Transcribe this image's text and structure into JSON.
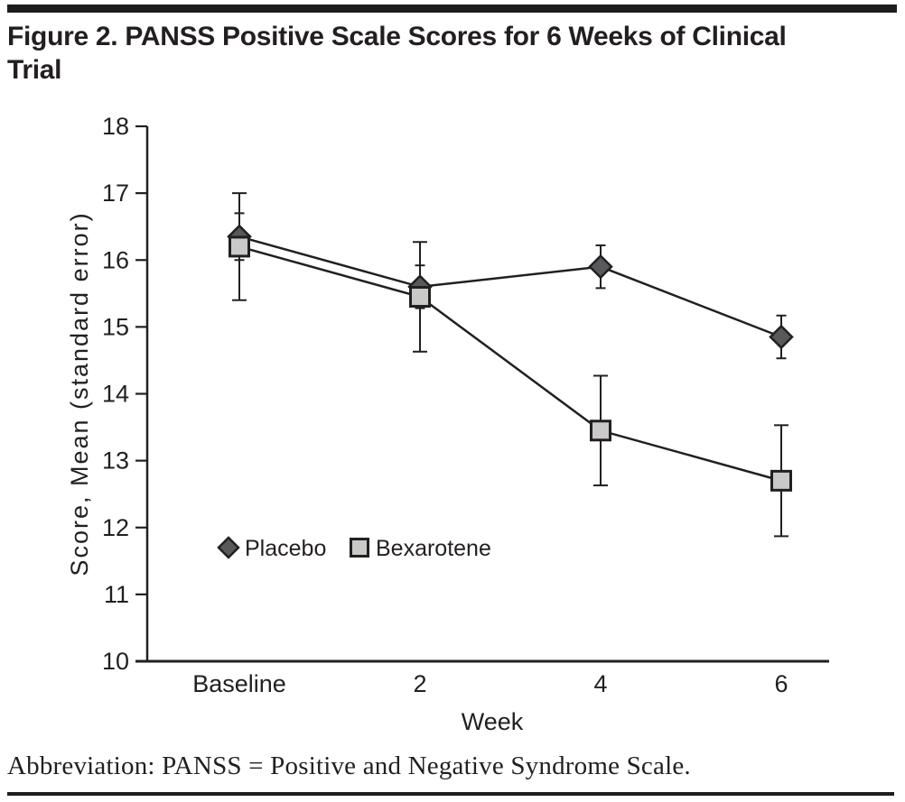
{
  "page": {
    "title_line1": "Figure 2. PANSS Positive Scale Scores for 6 Weeks of Clinical",
    "title_line2": "Trial",
    "footnote": "Abbreviation: PANSS = Positive and Negative Syndrome Scale.",
    "text_color": "#231f20",
    "rule_color": "#1e1c1d"
  },
  "chart_data": {
    "type": "line",
    "title": "Figure 2. PANSS Positive Scale Scores for 6 Weeks of Clinical Trial",
    "categories": [
      "Baseline",
      "2",
      "4",
      "6"
    ],
    "xlabel": "Week",
    "ylabel": "Score, Mean (standard error)",
    "ylim": [
      10,
      18
    ],
    "yticks": [
      10,
      11,
      12,
      13,
      14,
      15,
      16,
      17,
      18
    ],
    "grid": false,
    "error_bars": true,
    "legend_position": "inside-lower-left",
    "line_color": "#231f20",
    "series": [
      {
        "name": "Placebo",
        "marker": "diamond",
        "fill": "#58595b",
        "values": [
          16.35,
          15.6,
          15.9,
          14.85
        ],
        "se": [
          0.35,
          0.32,
          0.32,
          0.32
        ]
      },
      {
        "name": "Bexarotene",
        "marker": "square",
        "fill": "#c9c9c7",
        "values": [
          16.2,
          15.45,
          13.45,
          12.7
        ],
        "se": [
          0.8,
          0.82,
          0.82,
          0.83
        ]
      }
    ]
  }
}
